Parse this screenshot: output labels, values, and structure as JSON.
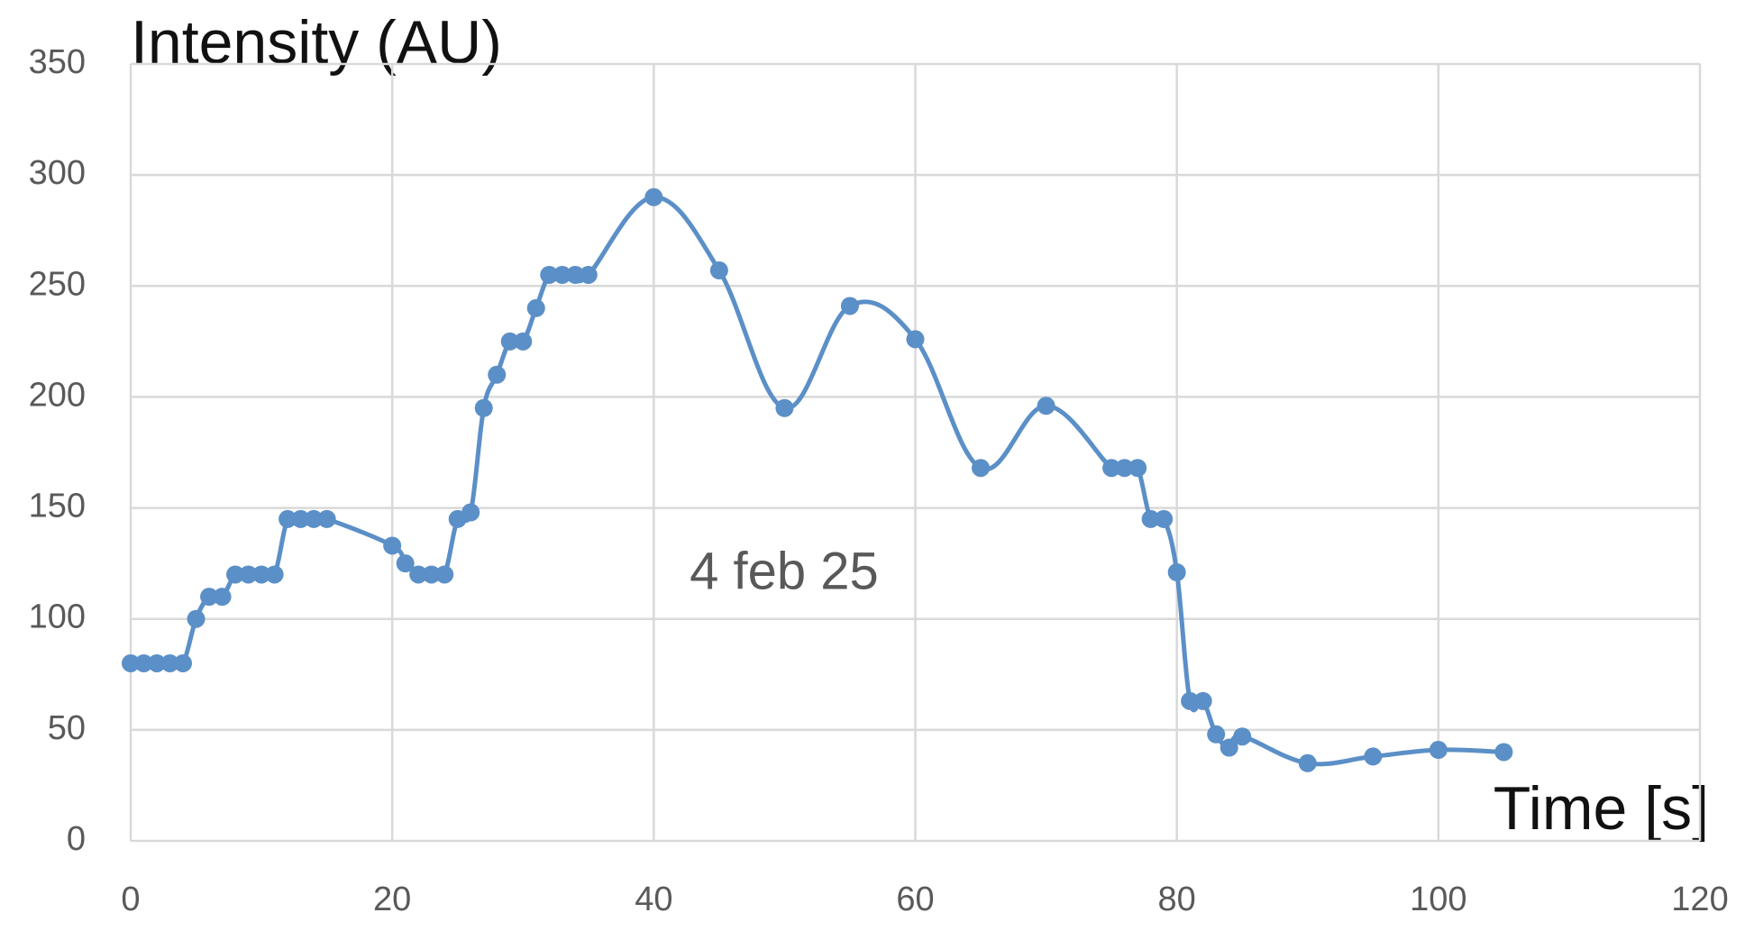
{
  "chart_data": {
    "type": "line",
    "y_axis_label": "Intensity (AU)",
    "x_axis_label": "Time [s]",
    "annotation": "4 feb 25",
    "x": [
      0,
      1,
      2,
      3,
      4,
      5,
      6,
      7,
      8,
      9,
      10,
      11,
      12,
      13,
      14,
      15,
      20,
      21,
      22,
      23,
      24,
      25,
      26,
      27,
      28,
      29,
      30,
      31,
      32,
      33,
      34,
      35,
      40,
      45,
      50,
      55,
      60,
      65,
      70,
      75,
      76,
      77,
      78,
      79,
      80,
      81,
      82,
      83,
      84,
      85,
      90,
      95,
      100,
      105
    ],
    "series": [
      {
        "color": "#5b8fc7",
        "values": [
          80,
          80,
          80,
          80,
          80,
          100,
          110,
          110,
          120,
          120,
          120,
          120,
          145,
          145,
          145,
          145,
          133,
          125,
          120,
          120,
          120,
          145,
          148,
          195,
          210,
          225,
          225,
          240,
          255,
          255,
          255,
          255,
          290,
          257,
          195,
          241,
          226,
          168,
          196,
          168,
          168,
          168,
          145,
          145,
          121,
          63,
          63,
          48,
          42,
          47,
          35,
          38,
          41,
          40
        ]
      }
    ],
    "xlim": [
      0,
      120
    ],
    "xticks": [
      0,
      20,
      40,
      60,
      80,
      100,
      120
    ],
    "ylim": [
      0,
      350
    ],
    "yticks": [
      0,
      50,
      100,
      150,
      200,
      250,
      300,
      350
    ],
    "grid": true
  }
}
